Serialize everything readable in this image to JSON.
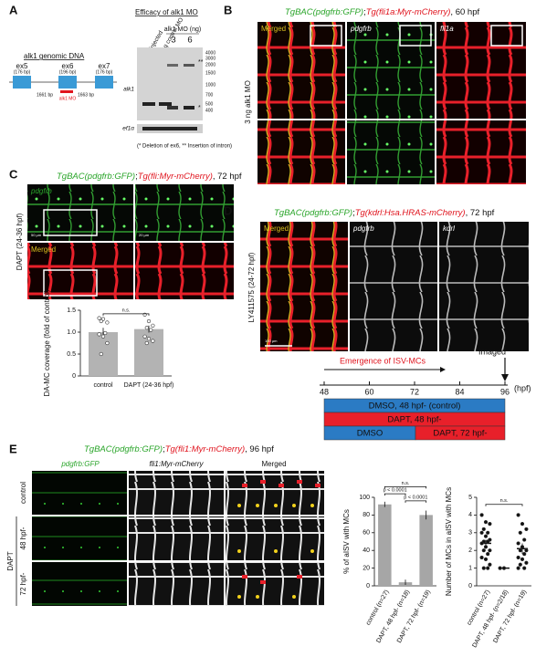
{
  "panel_a": {
    "label": "A",
    "genomic_title": "alk1 genomic DNA",
    "exons": [
      {
        "name": "ex5",
        "size": "(176 bp)"
      },
      {
        "name": "ex6",
        "size": "(196 bp)"
      },
      {
        "name": "ex7",
        "size": "(176 bp)"
      }
    ],
    "introns": [
      "1661 bp",
      "1663 bp"
    ],
    "mo_site": "alk1 MO",
    "gel_title": "Efficacy of alk1 MO",
    "lanes": [
      "uninjected",
      "6 ng control MO"
    ],
    "mo_group": "alk1 MO (ng)",
    "doses": [
      "3",
      "6"
    ],
    "gel_rows": [
      "alk1",
      "ef1α"
    ],
    "ladder": [
      "4000",
      "3000",
      "2000",
      "1500",
      "1000",
      "700",
      "500",
      "400"
    ],
    "markers": [
      "**",
      "*"
    ],
    "footnote": "(* Deletion of ex6, ** Insertion of intron)"
  },
  "panel_b": {
    "label": "B",
    "title": [
      "TgBAC(pdgfrb:GFP)",
      ";",
      "Tg(fli1a:Myr-mCherry)",
      ", 60 hpf"
    ],
    "columns": [
      "Merged",
      "pdgfrb",
      "fli1a"
    ],
    "side_label": "3 ng alk1 MO"
  },
  "panel_c": {
    "label": "C",
    "title": [
      "TgBAC(pdgfrb:GFP)",
      ";",
      "Tg(fli:Myr-mCherry)",
      ", 72 hpf"
    ],
    "rows": [
      "pdgfrb",
      "Merged"
    ],
    "scale_bars": [
      "50 µm",
      "20 µm"
    ],
    "side_label": "DAPT (24-36 hpf)"
  },
  "panel_d": {
    "label": "D",
    "title": [
      "TgBAC(pdgfrb:GFP)",
      ";",
      "Tg(kdrl:Hsa.HRAS-mCherry)",
      ", 72 hpf"
    ],
    "columns": [
      "Merged",
      "pdgfrb",
      "kdrl"
    ],
    "scale_bar": "100 µm",
    "side_label": "LY411575 (24-72 hpf)"
  },
  "timeline": {
    "emergence": "Emergence of ISV-MCs",
    "imaged": "Imaged",
    "ticks": [
      48,
      60,
      72,
      84,
      96
    ],
    "unit": "(hpf)",
    "bars": [
      "DMSO, 48 hpf- (control)",
      "DAPT, 48 hpf-",
      "DMSO",
      "DAPT, 72 hpf-"
    ]
  },
  "panel_e": {
    "label": "E",
    "title": [
      "TgBAC(pdgfrb:GFP)",
      ";",
      "Tg(fli1:Myr-mCherry)",
      ", 96 hpf"
    ],
    "columns": [
      "pdgfrb:GFP",
      "fli1:Myr-mCherry",
      "Merged"
    ],
    "rows": [
      "control",
      "48 hpf-",
      "72 hpf-"
    ],
    "row_group": "DAPT"
  },
  "chart_data": [
    {
      "type": "bar",
      "ylabel": "DA-MC coverage (fold of control)",
      "categories": [
        "control",
        "DAPT (24-36 hpf)"
      ],
      "values": [
        1.0,
        1.07
      ],
      "errors": [
        0.1,
        0.08
      ],
      "color": "#b3b3b3",
      "points": [
        [
          1.32,
          1.3,
          1.22,
          1.25,
          0.98,
          0.95,
          0.9,
          0.75,
          0.5
        ],
        [
          1.4,
          1.25,
          1.15,
          1.1,
          1.05,
          0.9,
          0.85,
          0.8,
          0.75
        ]
      ],
      "ylim": [
        0,
        1.5
      ],
      "yticks": [
        0,
        0.5,
        {
          "value": 1,
          "label": "1.0"
        },
        1.5
      ],
      "annotations": [
        "n.s."
      ]
    },
    {
      "type": "bar",
      "ylabel": "% of aISV with MCs",
      "categories": [
        "control (n=27)",
        "DAPT, 48 hpf- (n=18)",
        "DAPT, 72 hpf- (n=19)"
      ],
      "values": [
        92,
        4,
        80
      ],
      "errors": [
        3,
        3,
        5
      ],
      "color": "#a6a6a6",
      "ylim": [
        0,
        100
      ],
      "yticks": [
        0,
        20,
        40,
        60,
        80,
        100
      ],
      "annotations": [
        "n.s.",
        "p < 0.0001",
        "p < 0.0001"
      ]
    },
    {
      "type": "dot",
      "ylabel": "Number of MCs in aISV with MCs",
      "categories": [
        "control (n=27)",
        "DAPT, 48 hpf- (n=2/18)",
        "DAPT, 72 hpf- (n=19)"
      ],
      "values": [
        2.4,
        1,
        2.1
      ],
      "errors": [
        0.2,
        0,
        0.3
      ],
      "color": "#111111",
      "points": [
        [
          4,
          3.6,
          3.5,
          3.2,
          3,
          3,
          2.8,
          2.6,
          2.5,
          2.5,
          2.4,
          2.2,
          2,
          2,
          1.8,
          1.6,
          1.5,
          1.2,
          1,
          1
        ],
        [
          1,
          1
        ],
        [
          4,
          3.5,
          3.2,
          3,
          2.6,
          2.4,
          2.2,
          2,
          2,
          1.8,
          1.6,
          1.5,
          1.3,
          1.2,
          1,
          1
        ]
      ],
      "ylim": [
        0,
        5
      ],
      "yticks": [
        0,
        1,
        2,
        3,
        4,
        5
      ],
      "annotations": [
        "n.s."
      ]
    }
  ]
}
